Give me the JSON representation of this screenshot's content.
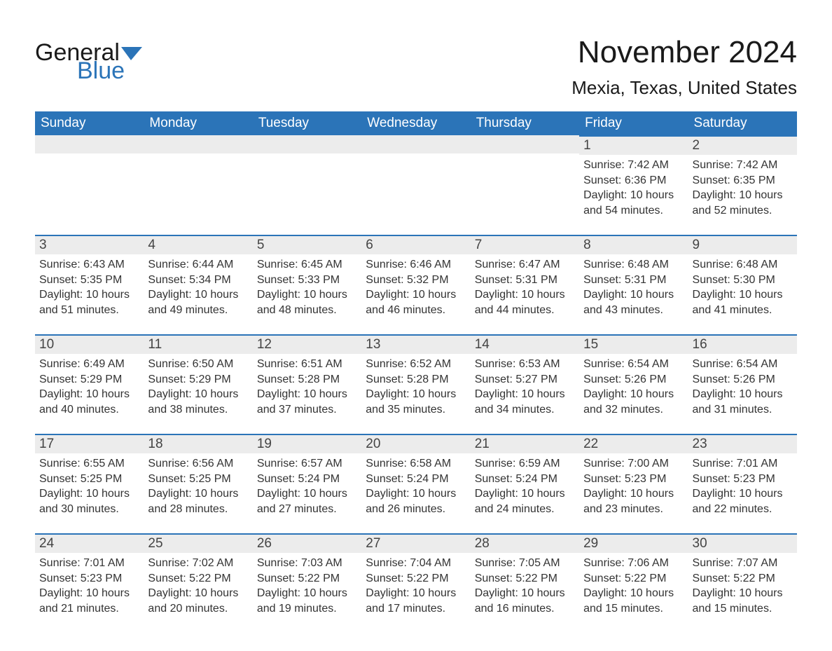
{
  "logo": {
    "word1": "General",
    "word2": "Blue",
    "text_color": "#1a1a1a",
    "accent_color": "#2b74b8"
  },
  "title": "November 2024",
  "location": "Mexia, Texas, United States",
  "colors": {
    "header_bg": "#2b74b8",
    "header_text": "#ffffff",
    "daystrip_bg": "#ececec",
    "daystrip_border": "#2b74b8",
    "body_text": "#333333",
    "page_bg": "#ffffff"
  },
  "day_headers": [
    "Sunday",
    "Monday",
    "Tuesday",
    "Wednesday",
    "Thursday",
    "Friday",
    "Saturday"
  ],
  "labels": {
    "sunrise": "Sunrise: ",
    "sunset": "Sunset: ",
    "daylight": "Daylight: "
  },
  "weeks": [
    [
      null,
      null,
      null,
      null,
      null,
      {
        "num": "1",
        "sunrise": "7:42 AM",
        "sunset": "6:36 PM",
        "daylight": "10 hours and 54 minutes."
      },
      {
        "num": "2",
        "sunrise": "7:42 AM",
        "sunset": "6:35 PM",
        "daylight": "10 hours and 52 minutes."
      }
    ],
    [
      {
        "num": "3",
        "sunrise": "6:43 AM",
        "sunset": "5:35 PM",
        "daylight": "10 hours and 51 minutes."
      },
      {
        "num": "4",
        "sunrise": "6:44 AM",
        "sunset": "5:34 PM",
        "daylight": "10 hours and 49 minutes."
      },
      {
        "num": "5",
        "sunrise": "6:45 AM",
        "sunset": "5:33 PM",
        "daylight": "10 hours and 48 minutes."
      },
      {
        "num": "6",
        "sunrise": "6:46 AM",
        "sunset": "5:32 PM",
        "daylight": "10 hours and 46 minutes."
      },
      {
        "num": "7",
        "sunrise": "6:47 AM",
        "sunset": "5:31 PM",
        "daylight": "10 hours and 44 minutes."
      },
      {
        "num": "8",
        "sunrise": "6:48 AM",
        "sunset": "5:31 PM",
        "daylight": "10 hours and 43 minutes."
      },
      {
        "num": "9",
        "sunrise": "6:48 AM",
        "sunset": "5:30 PM",
        "daylight": "10 hours and 41 minutes."
      }
    ],
    [
      {
        "num": "10",
        "sunrise": "6:49 AM",
        "sunset": "5:29 PM",
        "daylight": "10 hours and 40 minutes."
      },
      {
        "num": "11",
        "sunrise": "6:50 AM",
        "sunset": "5:29 PM",
        "daylight": "10 hours and 38 minutes."
      },
      {
        "num": "12",
        "sunrise": "6:51 AM",
        "sunset": "5:28 PM",
        "daylight": "10 hours and 37 minutes."
      },
      {
        "num": "13",
        "sunrise": "6:52 AM",
        "sunset": "5:28 PM",
        "daylight": "10 hours and 35 minutes."
      },
      {
        "num": "14",
        "sunrise": "6:53 AM",
        "sunset": "5:27 PM",
        "daylight": "10 hours and 34 minutes."
      },
      {
        "num": "15",
        "sunrise": "6:54 AM",
        "sunset": "5:26 PM",
        "daylight": "10 hours and 32 minutes."
      },
      {
        "num": "16",
        "sunrise": "6:54 AM",
        "sunset": "5:26 PM",
        "daylight": "10 hours and 31 minutes."
      }
    ],
    [
      {
        "num": "17",
        "sunrise": "6:55 AM",
        "sunset": "5:25 PM",
        "daylight": "10 hours and 30 minutes."
      },
      {
        "num": "18",
        "sunrise": "6:56 AM",
        "sunset": "5:25 PM",
        "daylight": "10 hours and 28 minutes."
      },
      {
        "num": "19",
        "sunrise": "6:57 AM",
        "sunset": "5:24 PM",
        "daylight": "10 hours and 27 minutes."
      },
      {
        "num": "20",
        "sunrise": "6:58 AM",
        "sunset": "5:24 PM",
        "daylight": "10 hours and 26 minutes."
      },
      {
        "num": "21",
        "sunrise": "6:59 AM",
        "sunset": "5:24 PM",
        "daylight": "10 hours and 24 minutes."
      },
      {
        "num": "22",
        "sunrise": "7:00 AM",
        "sunset": "5:23 PM",
        "daylight": "10 hours and 23 minutes."
      },
      {
        "num": "23",
        "sunrise": "7:01 AM",
        "sunset": "5:23 PM",
        "daylight": "10 hours and 22 minutes."
      }
    ],
    [
      {
        "num": "24",
        "sunrise": "7:01 AM",
        "sunset": "5:23 PM",
        "daylight": "10 hours and 21 minutes."
      },
      {
        "num": "25",
        "sunrise": "7:02 AM",
        "sunset": "5:22 PM",
        "daylight": "10 hours and 20 minutes."
      },
      {
        "num": "26",
        "sunrise": "7:03 AM",
        "sunset": "5:22 PM",
        "daylight": "10 hours and 19 minutes."
      },
      {
        "num": "27",
        "sunrise": "7:04 AM",
        "sunset": "5:22 PM",
        "daylight": "10 hours and 17 minutes."
      },
      {
        "num": "28",
        "sunrise": "7:05 AM",
        "sunset": "5:22 PM",
        "daylight": "10 hours and 16 minutes."
      },
      {
        "num": "29",
        "sunrise": "7:06 AM",
        "sunset": "5:22 PM",
        "daylight": "10 hours and 15 minutes."
      },
      {
        "num": "30",
        "sunrise": "7:07 AM",
        "sunset": "5:22 PM",
        "daylight": "10 hours and 15 minutes."
      }
    ]
  ]
}
